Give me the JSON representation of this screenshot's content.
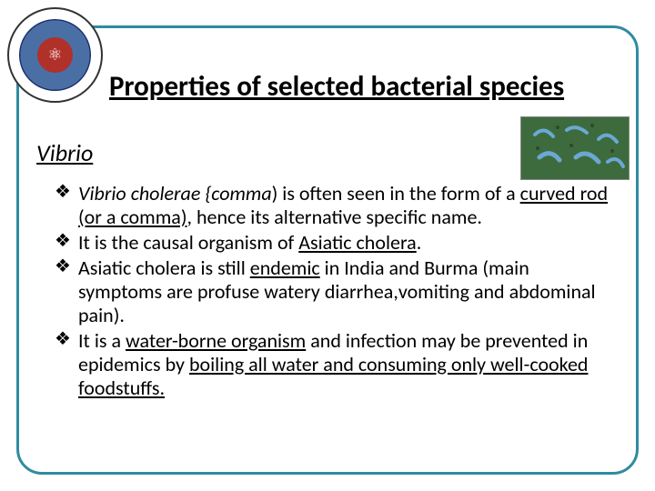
{
  "frame": {
    "border_color": "#2f8ba0"
  },
  "logo": {
    "outer_bg": "#ffffff",
    "ring_bg": "#1a2f6f",
    "gear_bg": "#4a6fa5",
    "center_bg": "#b0302a",
    "glyph": "⚛"
  },
  "title": "Properties of selected bacterial species",
  "subtitle": "Vibrio",
  "corner_image": {
    "bg": "#3d6b3d",
    "vibrio_color": "#6ba8d4"
  },
  "bullets": [
    {
      "marker": "❖",
      "segments": [
        {
          "text": "Vibrio cholerae {comma",
          "italic": true,
          "underline": false
        },
        {
          "text": ") is often seen in the form of a ",
          "italic": false,
          "underline": false
        },
        {
          "text": "curved rod (or a comma)",
          "italic": false,
          "underline": true
        },
        {
          "text": ", hence its alternative specific name.",
          "italic": false,
          "underline": false
        }
      ]
    },
    {
      "marker": "❖",
      "segments": [
        {
          "text": "It is the causal organism of ",
          "italic": false,
          "underline": false
        },
        {
          "text": "Asiatic cholera",
          "italic": false,
          "underline": true
        },
        {
          "text": ".",
          "italic": false,
          "underline": false
        }
      ]
    },
    {
      "marker": "❖",
      "segments": [
        {
          "text": "Asiatic cholera is still ",
          "italic": false,
          "underline": false
        },
        {
          "text": "endemic",
          "italic": false,
          "underline": true
        },
        {
          "text": " in India and Burma (main symptoms are profuse watery diarrhea,vomiting and abdominal pain).",
          "italic": false,
          "underline": false
        }
      ]
    },
    {
      "marker": "❖",
      "segments": [
        {
          "text": "It is a ",
          "italic": false,
          "underline": false
        },
        {
          "text": "water-borne organism",
          "italic": false,
          "underline": true
        },
        {
          "text": " and infection may be prevented in epidemics by ",
          "italic": false,
          "underline": false
        },
        {
          "text": "boiling all water and consuming only well-cooked foodstuffs.",
          "italic": false,
          "underline": true
        }
      ]
    }
  ]
}
